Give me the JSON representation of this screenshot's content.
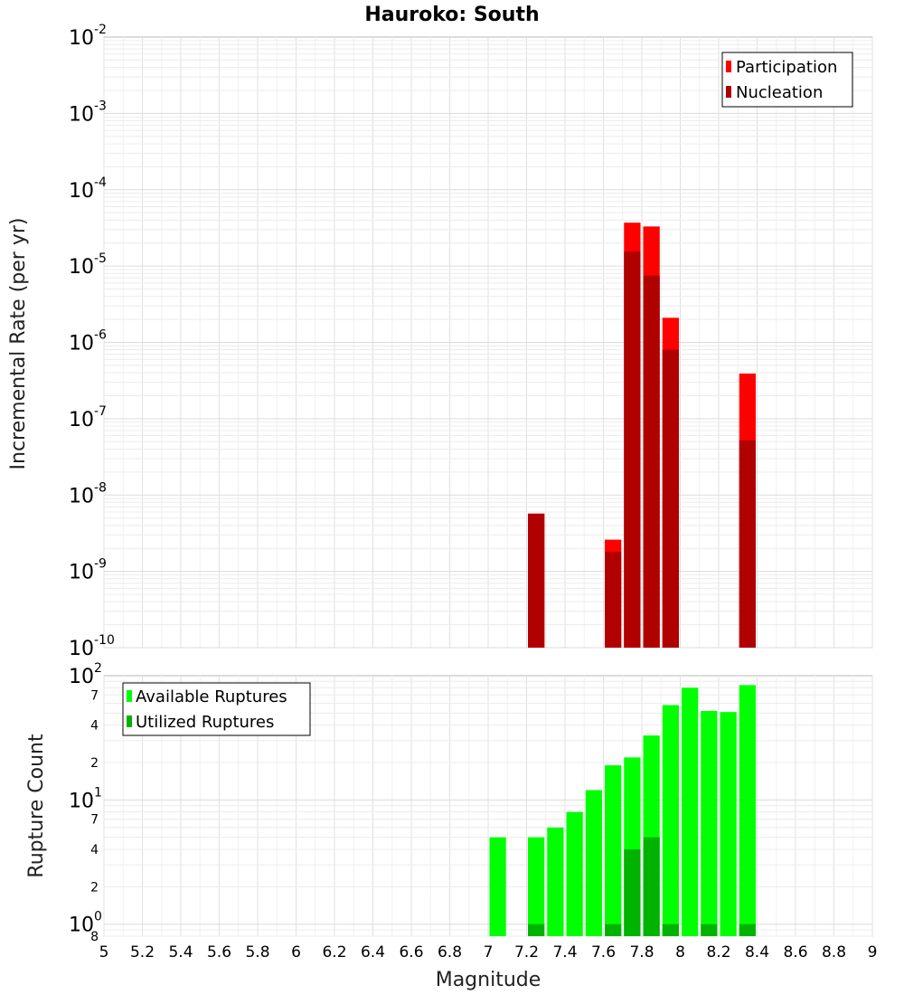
{
  "chart_data": [
    {
      "type": "bar",
      "title": "Hauroko: South",
      "ylabel": "Incremental Rate (per yr)",
      "yscale": "log",
      "ylim": [
        1e-10,
        0.01
      ],
      "grid": true,
      "legend_position": "top-right",
      "x": [
        7.25,
        7.65,
        7.75,
        7.85,
        7.95,
        8.35
      ],
      "series": [
        {
          "name": "Participation",
          "color": "#ff0000",
          "values": [
            5.7e-09,
            2.6e-09,
            3.7e-05,
            3.3e-05,
            2.1e-06,
            3.9e-07
          ]
        },
        {
          "name": "Nucleation",
          "color": "#b00000",
          "values": [
            5.7e-09,
            1.8e-09,
            1.55e-05,
            7.5e-06,
            8e-07,
            5.2e-08
          ]
        }
      ],
      "y_tick_exponents": [
        "-2",
        "-3",
        "-4",
        "-5",
        "-6",
        "-7",
        "-8",
        "-9",
        "-10"
      ]
    },
    {
      "type": "bar",
      "ylabel": "Rupture Count",
      "xlabel": "Magnitude",
      "yscale": "log",
      "ylim": [
        0.8,
        100
      ],
      "xlim": [
        5,
        9
      ],
      "grid": true,
      "legend_position": "top-left",
      "x": [
        7.05,
        7.25,
        7.35,
        7.45,
        7.55,
        7.65,
        7.75,
        7.85,
        7.95,
        8.05,
        8.15,
        8.25,
        8.35
      ],
      "series": [
        {
          "name": "Available Ruptures",
          "color": "#00ff00",
          "values": [
            5,
            5,
            6,
            8,
            12,
            19,
            22,
            33,
            58,
            80,
            52,
            51,
            84
          ]
        },
        {
          "name": "Utilized Ruptures",
          "color": "#00b300",
          "values": [
            0,
            1,
            0,
            0,
            0,
            1,
            4,
            5,
            1,
            0,
            1,
            0,
            1
          ]
        }
      ],
      "x_ticks": [
        "5",
        "5.2",
        "5.4",
        "5.6",
        "5.8",
        "6",
        "6.2",
        "6.4",
        "6.6",
        "6.8",
        "7",
        "7.2",
        "7.4",
        "7.6",
        "7.8",
        "8",
        "8.2",
        "8.4",
        "8.6",
        "8.8",
        "9"
      ],
      "y_major_ticks": [
        {
          "base": "10",
          "exp": "2"
        },
        {
          "base": "10",
          "exp": "1"
        },
        {
          "base": "10",
          "exp": "0"
        }
      ],
      "y_minor_ticks": [
        "7",
        "4",
        "2",
        "7",
        "4",
        "2",
        "8"
      ]
    }
  ]
}
